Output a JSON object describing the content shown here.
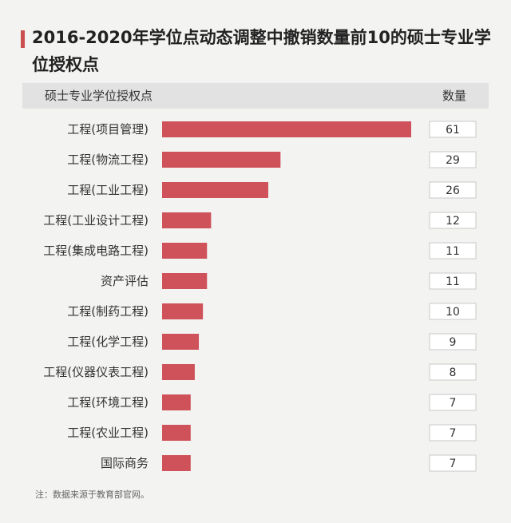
{
  "title": "2016-2020年学位点动态调整中撤销数量前10的硕士专业学位授权点",
  "header": {
    "category_label": "硕士专业学位授权点",
    "value_label": "数量"
  },
  "footnote": "注：数据来源于教育部官网。",
  "colors": {
    "bar": "#cf525a",
    "title_accent": "#c9504f",
    "value_box_border": "#c8c8c8"
  },
  "chart_data": {
    "type": "bar",
    "orientation": "horizontal",
    "categories": [
      "工程(项目管理)",
      "工程(物流工程)",
      "工程(工业工程)",
      "工程(工业设计工程)",
      "工程(集成电路工程)",
      "资产评估",
      "工程(制药工程)",
      "工程(化学工程)",
      "工程(仪器仪表工程)",
      "工程(环境工程)",
      "工程(农业工程)",
      "国际商务"
    ],
    "values": [
      61,
      29,
      26,
      12,
      11,
      11,
      10,
      9,
      8,
      7,
      7,
      7
    ],
    "xlim": [
      0,
      61
    ],
    "grid": false,
    "legend": "none",
    "data_labels": "boxed, right column"
  }
}
